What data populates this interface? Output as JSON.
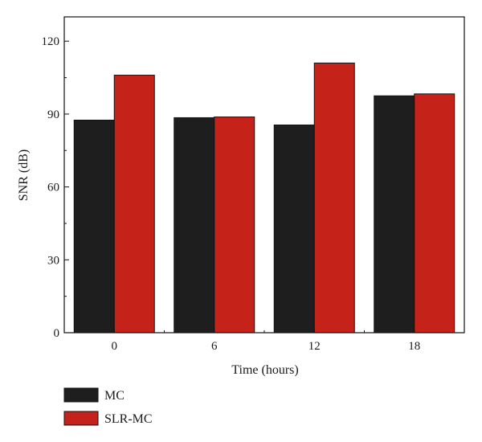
{
  "chart_data": {
    "type": "bar",
    "categories": [
      "0",
      "6",
      "12",
      "18"
    ],
    "series": [
      {
        "name": "MC",
        "values": [
          87.5,
          88.5,
          85.5,
          97.5
        ],
        "color": "#1e1e1e"
      },
      {
        "name": "SLR-MC",
        "values": [
          106,
          88.8,
          111,
          98.3
        ],
        "color": "#c5221a"
      }
    ],
    "xlabel": "Time (hours)",
    "ylabel": "SNR (dB)",
    "ylim": [
      0,
      130
    ],
    "yticks": [
      0,
      30,
      60,
      90,
      120
    ],
    "grid": false,
    "legend_position": "bottom-left"
  }
}
